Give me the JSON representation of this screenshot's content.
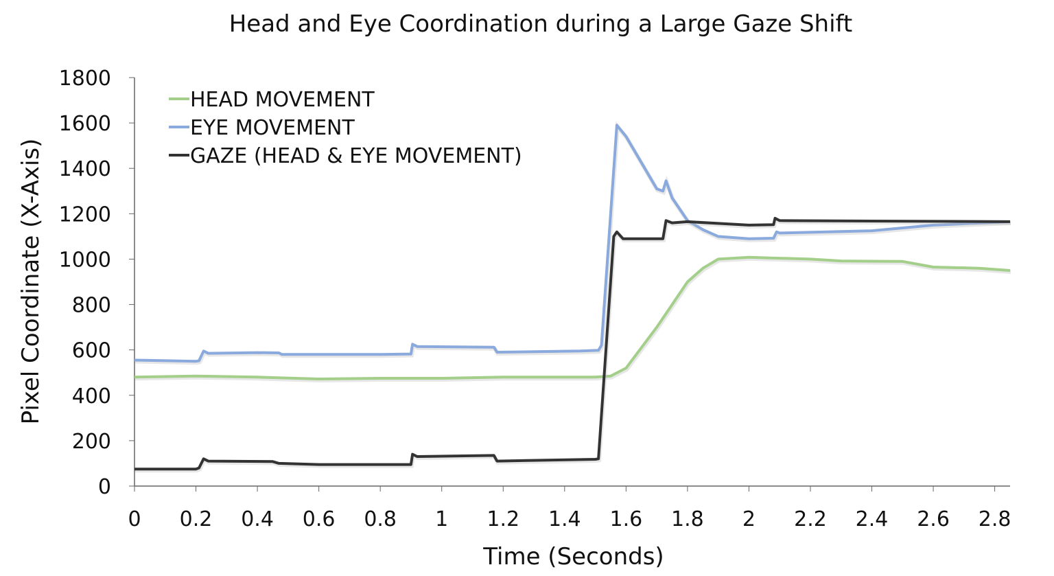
{
  "chart_data": {
    "type": "line",
    "title": "Head and Eye Coordination during a Large Gaze Shift",
    "xlabel": "Time (Seconds)",
    "ylabel": "Pixel Coordinate (X-Axis)",
    "xlim": [
      0,
      2.85
    ],
    "ylim": [
      0,
      1800
    ],
    "xticks": [
      "0",
      "0.2",
      "0.4",
      "0.6",
      "0.8",
      "1",
      "1.2",
      "1.4",
      "1.6",
      "1.8",
      "2",
      "2.2",
      "2.4",
      "2.6",
      "2.8"
    ],
    "yticks": [
      "0",
      "200",
      "400",
      "600",
      "800",
      "1000",
      "1200",
      "1400",
      "1600",
      "1800"
    ],
    "grid": false,
    "legend_placement": "top-left",
    "series": [
      {
        "name": "HEAD MOVEMENT",
        "color": "#a3cf8a",
        "points": [
          [
            0,
            480
          ],
          [
            0.2,
            485
          ],
          [
            0.4,
            480
          ],
          [
            0.6,
            472
          ],
          [
            0.8,
            475
          ],
          [
            1.0,
            475
          ],
          [
            1.2,
            480
          ],
          [
            1.5,
            480
          ],
          [
            1.55,
            485
          ],
          [
            1.6,
            520
          ],
          [
            1.7,
            700
          ],
          [
            1.75,
            800
          ],
          [
            1.8,
            900
          ],
          [
            1.85,
            960
          ],
          [
            1.9,
            1000
          ],
          [
            2.0,
            1008
          ],
          [
            2.2,
            1000
          ],
          [
            2.3,
            992
          ],
          [
            2.5,
            990
          ],
          [
            2.6,
            965
          ],
          [
            2.75,
            960
          ],
          [
            2.85,
            950
          ]
        ]
      },
      {
        "name": "EYE MOVEMENT",
        "color": "#8aa9dc",
        "points": [
          [
            0,
            555
          ],
          [
            0.2,
            550
          ],
          [
            0.21,
            552
          ],
          [
            0.225,
            595
          ],
          [
            0.24,
            585
          ],
          [
            0.4,
            588
          ],
          [
            0.47,
            587
          ],
          [
            0.48,
            580
          ],
          [
            0.8,
            580
          ],
          [
            0.9,
            582
          ],
          [
            0.905,
            625
          ],
          [
            0.92,
            615
          ],
          [
            1.17,
            612
          ],
          [
            1.18,
            590
          ],
          [
            1.45,
            595
          ],
          [
            1.51,
            598
          ],
          [
            1.52,
            620
          ],
          [
            1.57,
            1590
          ],
          [
            1.6,
            1540
          ],
          [
            1.7,
            1310
          ],
          [
            1.72,
            1300
          ],
          [
            1.73,
            1345
          ],
          [
            1.75,
            1270
          ],
          [
            1.8,
            1170
          ],
          [
            1.85,
            1130
          ],
          [
            1.9,
            1100
          ],
          [
            2.0,
            1090
          ],
          [
            2.08,
            1092
          ],
          [
            2.09,
            1120
          ],
          [
            2.1,
            1115
          ],
          [
            2.4,
            1125
          ],
          [
            2.6,
            1150
          ],
          [
            2.85,
            1165
          ]
        ]
      },
      {
        "name": "GAZE (HEAD & EYE MOVEMENT)",
        "color": "#333333",
        "points": [
          [
            0,
            75
          ],
          [
            0.2,
            75
          ],
          [
            0.21,
            80
          ],
          [
            0.225,
            120
          ],
          [
            0.24,
            110
          ],
          [
            0.45,
            108
          ],
          [
            0.47,
            100
          ],
          [
            0.6,
            95
          ],
          [
            0.9,
            95
          ],
          [
            0.905,
            140
          ],
          [
            0.92,
            130
          ],
          [
            1.17,
            135
          ],
          [
            1.18,
            110
          ],
          [
            1.5,
            118
          ],
          [
            1.51,
            120
          ],
          [
            1.56,
            1100
          ],
          [
            1.57,
            1120
          ],
          [
            1.59,
            1090
          ],
          [
            1.72,
            1090
          ],
          [
            1.73,
            1170
          ],
          [
            1.75,
            1160
          ],
          [
            1.8,
            1165
          ],
          [
            2.0,
            1150
          ],
          [
            2.08,
            1152
          ],
          [
            2.085,
            1180
          ],
          [
            2.1,
            1170
          ],
          [
            2.85,
            1165
          ]
        ]
      }
    ]
  }
}
